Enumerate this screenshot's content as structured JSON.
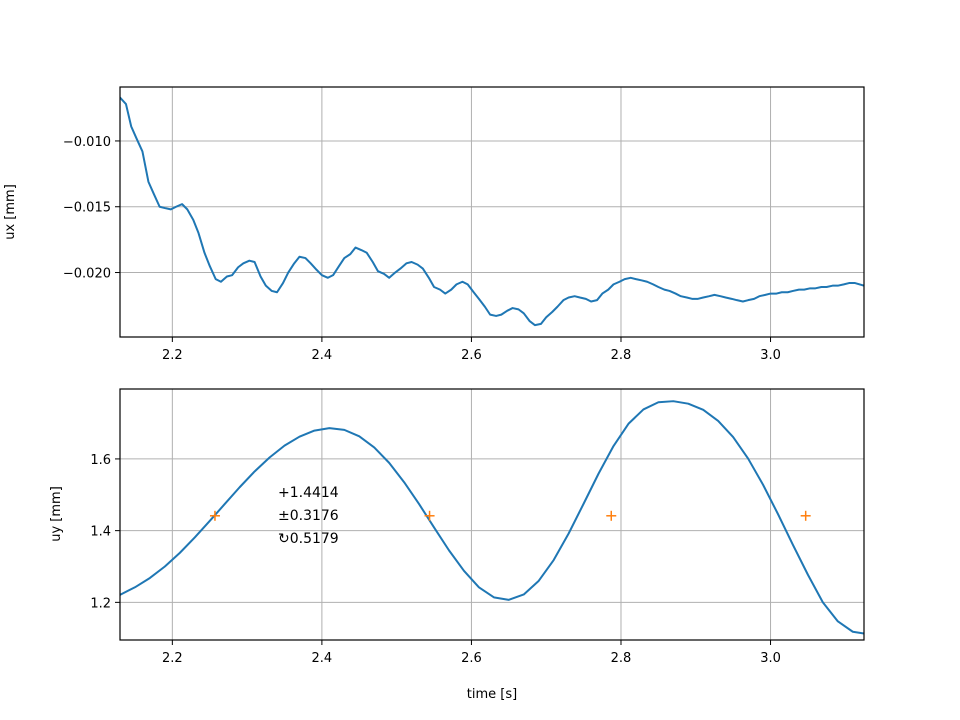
{
  "chart_data": [
    {
      "type": "line",
      "xlabel": "",
      "ylabel": "ux [mm]",
      "xlim": [
        2.13,
        3.125
      ],
      "ylim": [
        -0.0249,
        -0.0059
      ],
      "xticks": [
        2.2,
        2.4,
        2.6,
        2.8,
        3.0
      ],
      "xtick_labels": [
        "2.2",
        "2.4",
        "2.6",
        "2.8",
        "3.0"
      ],
      "yticks": [
        -0.01,
        -0.015,
        -0.02
      ],
      "ytick_labels": [
        "−0.010",
        "−0.015",
        "−0.020"
      ],
      "grid": true,
      "line_color": "#1f77b4",
      "series": [
        {
          "x": [
            2.13,
            2.138,
            2.145,
            2.152,
            2.16,
            2.168,
            2.175,
            2.183,
            2.19,
            2.198,
            2.205,
            2.213,
            2.22,
            2.228,
            2.235,
            2.243,
            2.25,
            2.258,
            2.265,
            2.273,
            2.28,
            2.288,
            2.295,
            2.303,
            2.31,
            2.318,
            2.325,
            2.333,
            2.34,
            2.348,
            2.355,
            2.363,
            2.37,
            2.378,
            2.385,
            2.393,
            2.4,
            2.408,
            2.415,
            2.423,
            2.43,
            2.438,
            2.445,
            2.453,
            2.46,
            2.468,
            2.475,
            2.483,
            2.49,
            2.498,
            2.505,
            2.513,
            2.52,
            2.528,
            2.535,
            2.543,
            2.55,
            2.558,
            2.565,
            2.573,
            2.58,
            2.588,
            2.595,
            2.603,
            2.61,
            2.618,
            2.625,
            2.633,
            2.64,
            2.648,
            2.655,
            2.663,
            2.67,
            2.678,
            2.685,
            2.693,
            2.7,
            2.708,
            2.715,
            2.723,
            2.73,
            2.738,
            2.745,
            2.753,
            2.76,
            2.768,
            2.775,
            2.783,
            2.79,
            2.798,
            2.805,
            2.813,
            2.82,
            2.828,
            2.835,
            2.843,
            2.85,
            2.858,
            2.865,
            2.873,
            2.88,
            2.888,
            2.895,
            2.903,
            2.91,
            2.918,
            2.925,
            2.933,
            2.94,
            2.948,
            2.955,
            2.963,
            2.97,
            2.978,
            2.985,
            2.993,
            3.0,
            3.008,
            3.015,
            3.023,
            3.03,
            3.038,
            3.045,
            3.053,
            3.06,
            3.068,
            3.075,
            3.083,
            3.09,
            3.098,
            3.105,
            3.113,
            3.125
          ],
          "y": [
            -0.0067,
            -0.0072,
            -0.0089,
            -0.0098,
            -0.0108,
            -0.0131,
            -0.014,
            -0.015,
            -0.0151,
            -0.0152,
            -0.015,
            -0.0148,
            -0.0152,
            -0.016,
            -0.017,
            -0.0185,
            -0.0195,
            -0.0205,
            -0.0207,
            -0.0203,
            -0.0202,
            -0.0196,
            -0.0193,
            -0.0191,
            -0.0192,
            -0.0203,
            -0.021,
            -0.0214,
            -0.0215,
            -0.0208,
            -0.02,
            -0.0193,
            -0.0188,
            -0.0189,
            -0.0193,
            -0.0198,
            -0.0202,
            -0.0204,
            -0.0202,
            -0.0195,
            -0.0189,
            -0.0186,
            -0.0181,
            -0.0183,
            -0.0185,
            -0.0192,
            -0.0199,
            -0.0201,
            -0.0204,
            -0.02,
            -0.0197,
            -0.0193,
            -0.0192,
            -0.0194,
            -0.0197,
            -0.0204,
            -0.0211,
            -0.0213,
            -0.0216,
            -0.0213,
            -0.0209,
            -0.0207,
            -0.0209,
            -0.0215,
            -0.022,
            -0.0226,
            -0.0232,
            -0.0233,
            -0.0232,
            -0.0229,
            -0.0227,
            -0.0228,
            -0.0231,
            -0.0237,
            -0.024,
            -0.0239,
            -0.0234,
            -0.023,
            -0.0226,
            -0.0221,
            -0.0219,
            -0.0218,
            -0.0219,
            -0.022,
            -0.0222,
            -0.0221,
            -0.0216,
            -0.0213,
            -0.0209,
            -0.0207,
            -0.0205,
            -0.0204,
            -0.0205,
            -0.0206,
            -0.0207,
            -0.0209,
            -0.0211,
            -0.0213,
            -0.0214,
            -0.0216,
            -0.0218,
            -0.0219,
            -0.022,
            -0.022,
            -0.0219,
            -0.0218,
            -0.0217,
            -0.0218,
            -0.0219,
            -0.022,
            -0.0221,
            -0.0222,
            -0.0221,
            -0.022,
            -0.0218,
            -0.0217,
            -0.0216,
            -0.0216,
            -0.0215,
            -0.0215,
            -0.0214,
            -0.0213,
            -0.0213,
            -0.0212,
            -0.0212,
            -0.0211,
            -0.0211,
            -0.021,
            -0.021,
            -0.0209,
            -0.0208,
            -0.0208,
            -0.021
          ]
        }
      ]
    },
    {
      "type": "line",
      "xlabel": "time [s]",
      "ylabel": "uy [mm]",
      "xlim": [
        2.13,
        3.125
      ],
      "ylim": [
        1.095,
        1.795
      ],
      "xticks": [
        2.2,
        2.4,
        2.6,
        2.8,
        3.0
      ],
      "xtick_labels": [
        "2.2",
        "2.4",
        "2.6",
        "2.8",
        "3.0"
      ],
      "yticks": [
        1.2,
        1.4,
        1.6
      ],
      "ytick_labels": [
        "1.2",
        "1.4",
        "1.6"
      ],
      "grid": true,
      "line_color": "#1f77b4",
      "marker_color": "#ff7f0e",
      "crossing_level": 1.4414,
      "crossings_x": [
        2.257,
        2.544,
        2.787,
        3.047
      ],
      "annotation": [
        "+1.4414",
        "±0.3176",
        "↻0.5179"
      ],
      "series": [
        {
          "x": [
            2.13,
            2.15,
            2.17,
            2.19,
            2.21,
            2.23,
            2.25,
            2.27,
            2.29,
            2.31,
            2.33,
            2.35,
            2.37,
            2.39,
            2.41,
            2.43,
            2.45,
            2.47,
            2.49,
            2.51,
            2.53,
            2.55,
            2.57,
            2.59,
            2.61,
            2.63,
            2.65,
            2.67,
            2.69,
            2.71,
            2.73,
            2.75,
            2.77,
            2.79,
            2.81,
            2.83,
            2.85,
            2.87,
            2.89,
            2.91,
            2.93,
            2.95,
            2.97,
            2.99,
            3.01,
            3.03,
            3.05,
            3.07,
            3.09,
            3.11,
            3.125
          ],
          "y": [
            1.221,
            1.242,
            1.268,
            1.3,
            1.338,
            1.381,
            1.427,
            1.474,
            1.521,
            1.565,
            1.604,
            1.637,
            1.662,
            1.679,
            1.686,
            1.681,
            1.663,
            1.632,
            1.589,
            1.535,
            1.474,
            1.409,
            1.345,
            1.288,
            1.242,
            1.214,
            1.207,
            1.222,
            1.26,
            1.318,
            1.392,
            1.475,
            1.559,
            1.636,
            1.698,
            1.738,
            1.758,
            1.761,
            1.754,
            1.737,
            1.706,
            1.661,
            1.601,
            1.528,
            1.446,
            1.36,
            1.277,
            1.2,
            1.147,
            1.118,
            1.113
          ]
        }
      ]
    }
  ]
}
